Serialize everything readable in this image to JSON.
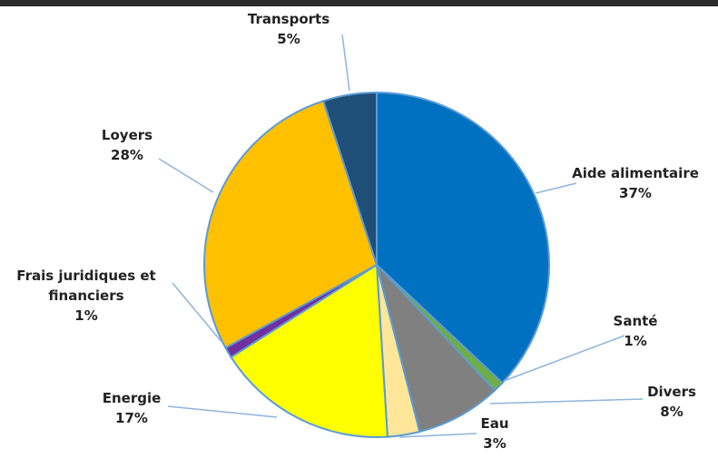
{
  "chart_data": {
    "type": "pie",
    "categories": [
      "Aide alimentaire",
      "Santé",
      "Divers",
      "Eau",
      "Energie",
      "Frais juridiques et financiers",
      "Loyers",
      "Transports"
    ],
    "values": [
      37,
      1,
      8,
      3,
      17,
      1,
      28,
      5
    ],
    "value_labels": [
      "37%",
      "1%",
      "8%",
      "3%",
      "17%",
      "1%",
      "28%",
      "5%"
    ],
    "colors": [
      "#0070c0",
      "#70ad47",
      "#808080",
      "#ffe699",
      "#ffff00",
      "#7030a0",
      "#ffc000",
      "#1f4e79"
    ]
  }
}
